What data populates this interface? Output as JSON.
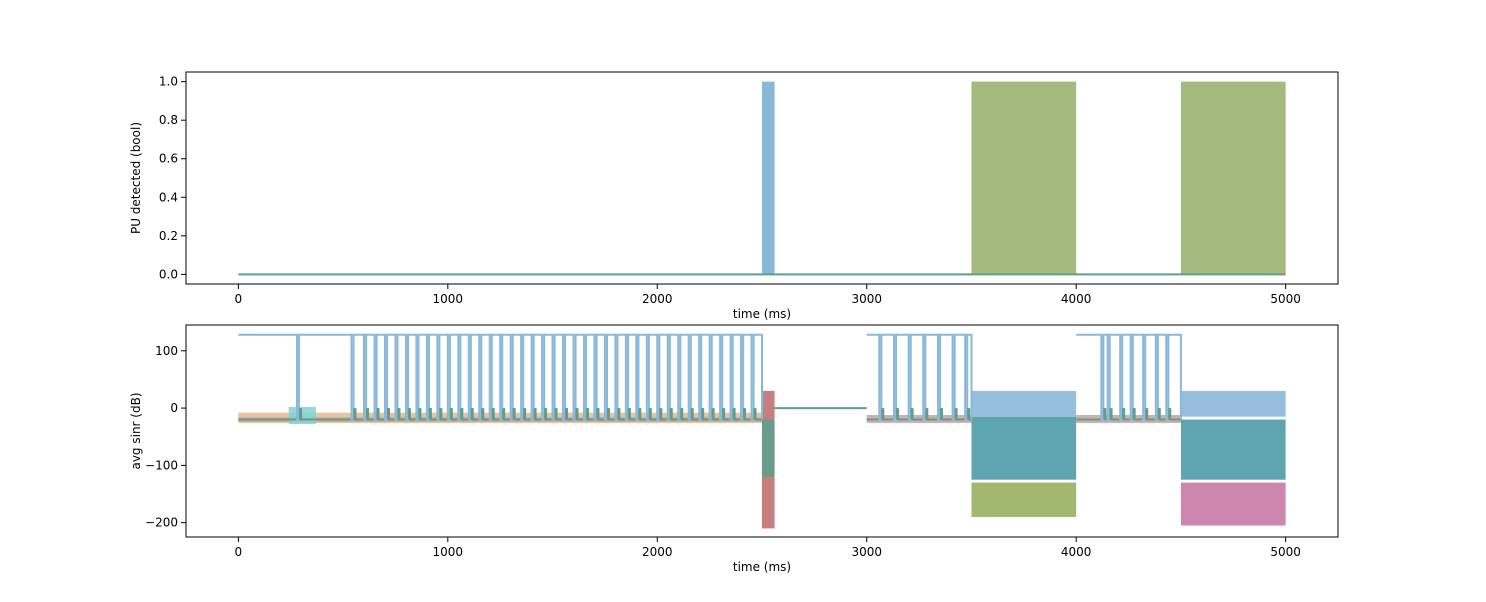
{
  "chart_data": [
    {
      "type": "line",
      "title": "",
      "xlabel": "time (ms)",
      "ylabel": "PU detected (bool)",
      "xlim": [
        -250,
        5250
      ],
      "ylim": [
        -0.05,
        1.05
      ],
      "xticks": [
        0,
        1000,
        2000,
        3000,
        4000,
        5000
      ],
      "xtick_labels": [
        "0",
        "1000",
        "2000",
        "3000",
        "4000",
        "5000"
      ],
      "yticks": [
        0.0,
        0.2,
        0.4,
        0.6,
        0.8,
        1.0
      ],
      "ytick_labels": [
        "0.0",
        "0.2",
        "0.4",
        "0.6",
        "0.8",
        "1.0"
      ],
      "grid": false,
      "legend": "none",
      "baseline": {
        "x": [
          0,
          5000
        ],
        "y": 0.0,
        "color": "#5e9e8a"
      },
      "detection_blocks": [
        {
          "x_start": 2500,
          "x_end": 2560,
          "y": 1.0,
          "color": "#8ab8d8"
        },
        {
          "x_start": 3500,
          "x_end": 4000,
          "y": 1.0,
          "color": "#a4ba7e"
        },
        {
          "x_start": 4500,
          "x_end": 5000,
          "y": 1.0,
          "color": "#a4ba7e"
        }
      ]
    },
    {
      "type": "line",
      "title": "",
      "xlabel": "time (ms)",
      "ylabel": "avg sinr (dB)",
      "xlim": [
        -250,
        5250
      ],
      "ylim": [
        -225,
        145
      ],
      "xticks": [
        0,
        1000,
        2000,
        3000,
        4000,
        5000
      ],
      "xtick_labels": [
        "0",
        "1000",
        "2000",
        "3000",
        "4000",
        "5000"
      ],
      "yticks": [
        -200,
        -100,
        0,
        100
      ],
      "ytick_labels": [
        "−200",
        "−100",
        "0",
        "100"
      ],
      "grid": false,
      "legend": "none",
      "background_bands": [
        {
          "x_start": 0,
          "x_end": 2500,
          "y_low": -26,
          "y_high": -8,
          "color": "#e8b890"
        },
        {
          "x_start": 0,
          "x_end": 2500,
          "y_low": -24,
          "y_high": -16,
          "color": "#c9a0a0"
        },
        {
          "x_start": 240,
          "x_end": 370,
          "y_low": -28,
          "y_high": 2,
          "color": "#7fd4d4"
        },
        {
          "x_start": 3000,
          "x_end": 3500,
          "y_low": -26,
          "y_high": -12,
          "color": "#c9a0a0"
        },
        {
          "x_start": 4000,
          "x_end": 4500,
          "y_low": -26,
          "y_high": -12,
          "color": "#c9a0a0"
        }
      ],
      "dense_blocks": [
        {
          "x_start": 2500,
          "x_end": 2560,
          "y_low": -210,
          "y_high": 30,
          "color": "#c07070"
        },
        {
          "x_start": 2500,
          "x_end": 2560,
          "y_low": -120,
          "y_high": -20,
          "color": "#5fa08c"
        },
        {
          "x_start": 3500,
          "x_end": 4000,
          "y_low": -190,
          "y_high": -130,
          "color": "#98b060"
        },
        {
          "x_start": 3500,
          "x_end": 4000,
          "y_low": -125,
          "y_high": -15,
          "color": "#4d9aa8"
        },
        {
          "x_start": 3500,
          "x_end": 4000,
          "y_low": -15,
          "y_high": 30,
          "color": "#8ab8d8"
        },
        {
          "x_start": 4500,
          "x_end": 5000,
          "y_low": -205,
          "y_high": -130,
          "color": "#c87aa6"
        },
        {
          "x_start": 4500,
          "x_end": 5000,
          "y_low": -125,
          "y_high": -20,
          "color": "#4d9aa8"
        },
        {
          "x_start": 4500,
          "x_end": 5000,
          "y_low": -15,
          "y_high": 30,
          "color": "#8ab8d8"
        }
      ],
      "series": [
        {
          "color": "#8ab8d8",
          "high": 128,
          "low": -20,
          "segments": [
            {
              "x_start": 0,
              "x_end": 2500,
              "dip_x": [
                280,
                540,
                600,
                650,
                700,
                750,
                800,
                850,
                900,
                950,
                1000,
                1050,
                1100,
                1150,
                1200,
                1250,
                1300,
                1350,
                1400,
                1450,
                1500,
                1550,
                1600,
                1650,
                1700,
                1750,
                1800,
                1850,
                1900,
                1950,
                2000,
                2050,
                2100,
                2150,
                2200,
                2250,
                2300,
                2350,
                2400,
                2450
              ]
            },
            {
              "x_start": 3000,
              "x_end": 3500,
              "dip_x": [
                3060,
                3130,
                3200,
                3270,
                3340,
                3410,
                3470
              ]
            },
            {
              "x_start": 4000,
              "x_end": 4500,
              "dip_x": [
                4120,
                4150,
                4210,
                4260,
                4320,
                4380,
                4430
              ]
            }
          ]
        },
        {
          "color": "#5e9e8a",
          "segments": [
            {
              "x_start": 0,
              "x_end": 2500,
              "y": -20
            },
            {
              "x_start": 2560,
              "x_end": 3000,
              "y": 0
            },
            {
              "x_start": 3000,
              "x_end": 3500,
              "y": -20
            },
            {
              "x_start": 4000,
              "x_end": 4500,
              "y": -20
            }
          ]
        }
      ]
    }
  ]
}
